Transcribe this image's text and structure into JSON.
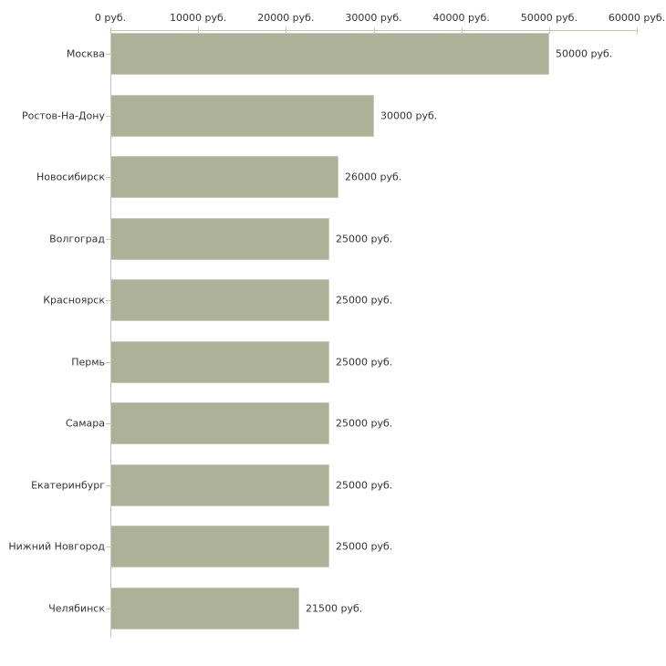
{
  "chart_data": {
    "type": "bar",
    "orientation": "horizontal",
    "title": "",
    "unit": "руб.",
    "categories": [
      "Москва",
      "Ростов-На-Дону",
      "Новосибирск",
      "Волгоград",
      "Красноярск",
      "Пермь",
      "Самара",
      "Екатеринбург",
      "Нижний Новгород",
      "Челябинск"
    ],
    "values": [
      50000,
      30000,
      26000,
      25000,
      25000,
      25000,
      25000,
      25000,
      25000,
      21500
    ],
    "value_labels": [
      "50000 руб.",
      "30000 руб.",
      "26000 руб.",
      "25000 руб.",
      "25000 руб.",
      "25000 руб.",
      "25000 руб.",
      "25000 руб.",
      "25000 руб.",
      "21500 руб."
    ],
    "x_axis": {
      "position": "top",
      "range": [
        0,
        60000
      ],
      "ticks": [
        0,
        10000,
        20000,
        30000,
        40000,
        50000,
        60000
      ],
      "tick_labels": [
        "0 руб.",
        "10000 руб.",
        "20000 руб.",
        "30000 руб.",
        "40000 руб.",
        "50000 руб.",
        "60000 руб."
      ]
    },
    "legend": "none",
    "grid": "off",
    "colors": {
      "bar_fill": "#adb198",
      "x_axis_line": "#c6c6ae",
      "y_axis_line": "#c0c0c0",
      "tick_mark": "#c9c9a0",
      "text": "#333333",
      "background": "#ffffff"
    }
  }
}
